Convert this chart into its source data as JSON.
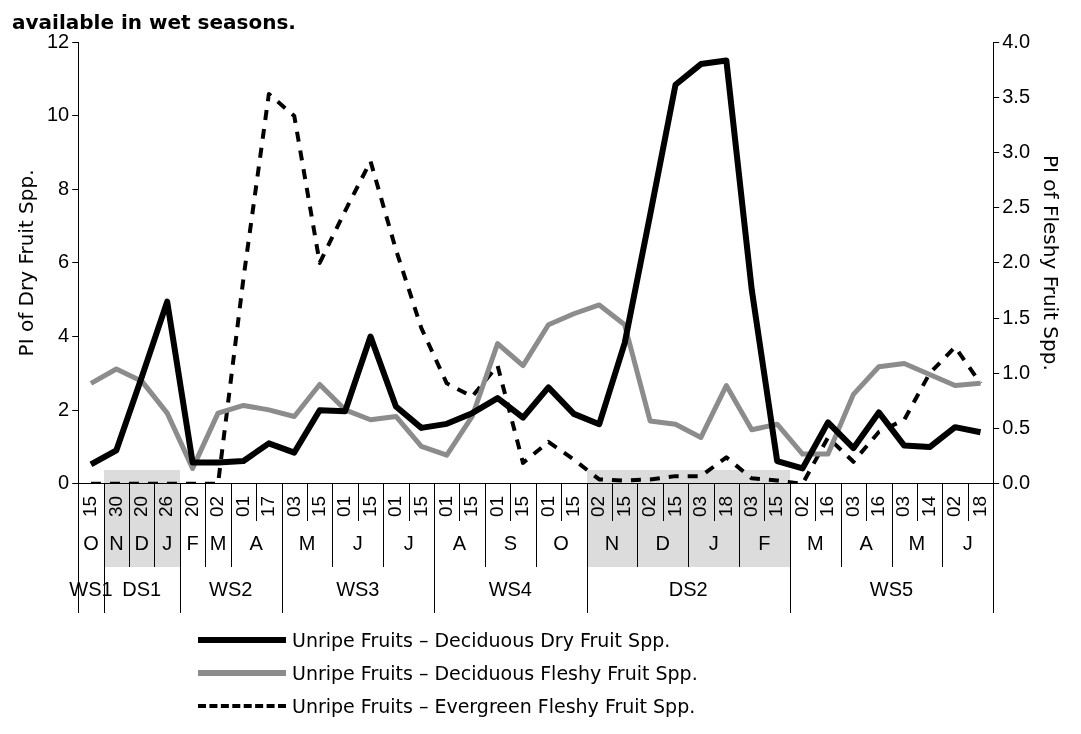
{
  "chart_data": {
    "type": "line",
    "title": "available in wet seasons.",
    "ylabel": "PI of Dry Fruit Spp.",
    "y2label": "PI of Fleshy Fruit Spp.",
    "categories": [
      "15",
      "30",
      "20",
      "26",
      "20",
      "02",
      "01",
      "17",
      "03",
      "15",
      "01",
      "15",
      "01",
      "15",
      "01",
      "15",
      "01",
      "15",
      "01",
      "15",
      "02",
      "15",
      "02",
      "15",
      "03",
      "18",
      "03",
      "15",
      "02",
      "16",
      "03",
      "16",
      "03",
      "14",
      "02",
      "18"
    ],
    "series": [
      {
        "name": "Unripe Fruits – Deciduous Dry Fruit Spp.",
        "color": "#000000",
        "line_style": "solid",
        "values": [
          0.53,
          0.91,
          2.9,
          4.95,
          0.58,
          0.58,
          0.62,
          1.1,
          0.85,
          2.0,
          1.97,
          4.0,
          2.1,
          1.52,
          1.63,
          1.92,
          2.33,
          1.8,
          2.62,
          1.9,
          1.62,
          3.82,
          7.3,
          10.84,
          11.4,
          11.5,
          5.27,
          0.62,
          0.42,
          1.67,
          0.97,
          1.94,
          1.04,
          1.0,
          1.54,
          1.4
        ]
      },
      {
        "name": "Unripe Fruits – Deciduous Fleshy Fruit Spp.",
        "color": "#8c8c8c",
        "line_style": "solid",
        "axis": "y2",
        "values": [
          0.91,
          1.04,
          0.93,
          0.64,
          0.14,
          0.64,
          0.71,
          0.67,
          0.61,
          0.9,
          0.67,
          0.58,
          0.61,
          0.34,
          0.26,
          0.61,
          1.27,
          1.07,
          1.44,
          1.54,
          1.62,
          1.44,
          0.57,
          0.54,
          0.42,
          0.89,
          0.49,
          0.54,
          0.27,
          0.27,
          0.81,
          1.06,
          1.09,
          0.99,
          0.89,
          0.91
        ]
      },
      {
        "name": "Unripe Fruits – Evergreen Fleshy Fruit Spp.",
        "color": "#000000",
        "line_style": "dashed",
        "axis": "y2",
        "values": [
          0,
          0,
          0,
          0,
          0,
          0,
          1.86,
          3.53,
          3.33,
          2.0,
          2.47,
          2.92,
          2.12,
          1.41,
          0.91,
          0.79,
          1.07,
          0.19,
          0.38,
          0.22,
          0.04,
          0.03,
          0.04,
          0.07,
          0.07,
          0.24,
          0.05,
          0.03,
          0,
          0.42,
          0.2,
          0.47,
          0.58,
          1.0,
          1.24,
          0.91
        ]
      }
    ],
    "ylim": [
      0,
      12
    ],
    "yticks": [
      0,
      2,
      4,
      6,
      8,
      10,
      12
    ],
    "y2lim": [
      0,
      4
    ],
    "y2ticks": [
      {
        "value": 0,
        "label": "0.0"
      },
      {
        "value": 0.5,
        "label": "0.5"
      },
      {
        "value": 1,
        "label": "1.0"
      },
      {
        "value": 1.5,
        "label": "1.5"
      },
      {
        "value": 2,
        "label": "2.0"
      },
      {
        "value": 2.5,
        "label": "2.5"
      },
      {
        "value": 3,
        "label": "3.0"
      },
      {
        "value": 3.5,
        "label": "3.5"
      },
      {
        "value": 4,
        "label": "4.0"
      }
    ],
    "annotations": [
      "O",
      "N",
      "D",
      "J",
      "F",
      "M",
      "A",
      "M",
      "J",
      "J",
      "A",
      "S",
      "O",
      "N",
      "D",
      "J",
      "F",
      "M",
      "A",
      "M",
      "J",
      "WS1",
      "DS1",
      "WS2",
      "WS3",
      "WS4",
      "DS2",
      "WS5"
    ],
    "grid": false,
    "legend": "bottom",
    "marker": "none"
  }
}
